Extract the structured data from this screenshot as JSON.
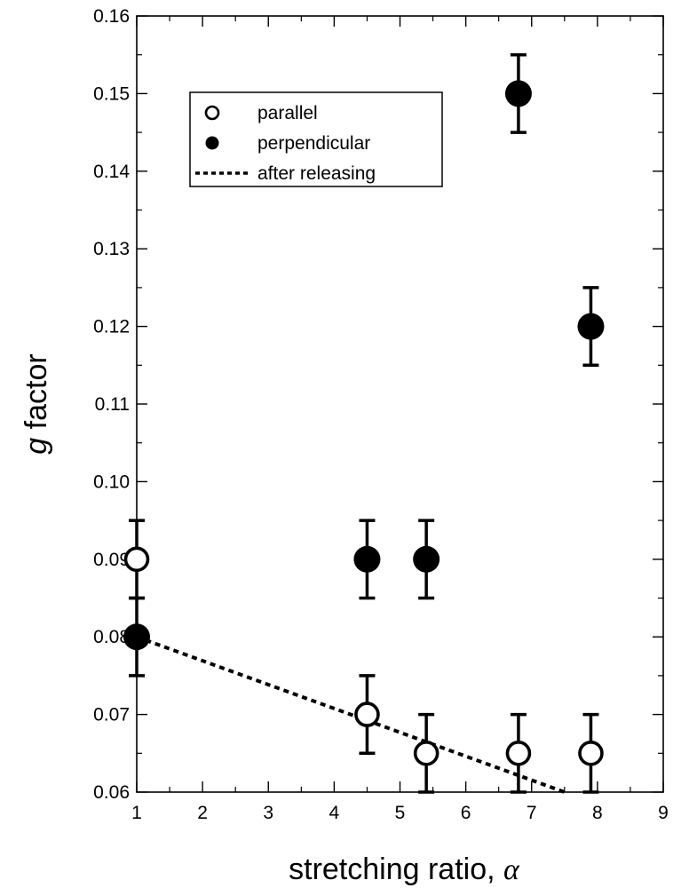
{
  "chart_data": {
    "type": "scatter",
    "xlabel": "stretching ratio, ",
    "xlabel_symbol": "α",
    "ylabel_italic": "g",
    "ylabel": " factor",
    "xlim": [
      1,
      9
    ],
    "ylim": [
      0.06,
      0.16
    ],
    "xticks": [
      {
        "value": 1,
        "label": "1"
      },
      {
        "value": 2,
        "label": "2"
      },
      {
        "value": 3,
        "label": "3"
      },
      {
        "value": 4,
        "label": "4"
      },
      {
        "value": 5,
        "label": "5"
      },
      {
        "value": 6,
        "label": "6"
      },
      {
        "value": 7,
        "label": "7"
      },
      {
        "value": 8,
        "label": "8"
      },
      {
        "value": 9,
        "label": "9"
      }
    ],
    "yticks": [
      {
        "value": 0.06,
        "label": "0.06"
      },
      {
        "value": 0.07,
        "label": "0.07"
      },
      {
        "value": 0.08,
        "label": "0.08"
      },
      {
        "value": 0.09,
        "label": "0.09"
      },
      {
        "value": 0.1,
        "label": "0.10"
      },
      {
        "value": 0.11,
        "label": "0.11"
      },
      {
        "value": 0.12,
        "label": "0.12"
      },
      {
        "value": 0.13,
        "label": "0.13"
      },
      {
        "value": 0.14,
        "label": "0.14"
      },
      {
        "value": 0.15,
        "label": "0.15"
      },
      {
        "value": 0.16,
        "label": "0.16"
      }
    ],
    "grid": false,
    "legend_position": "top-left",
    "series": [
      {
        "name": "parallel",
        "marker": "open-circle",
        "x": [
          1,
          4.5,
          5.4,
          6.8,
          7.9
        ],
        "y": [
          0.09,
          0.07,
          0.065,
          0.065,
          0.065
        ],
        "error": [
          0.005,
          0.005,
          0.005,
          0.005,
          0.005
        ]
      },
      {
        "name": "perpendicular",
        "marker": "filled-circle",
        "x": [
          1,
          4.5,
          5.4,
          6.8,
          7.9
        ],
        "y": [
          0.08,
          0.09,
          0.09,
          0.15,
          0.12
        ],
        "error": [
          0.005,
          0.005,
          0.005,
          0.005,
          0.005
        ]
      },
      {
        "name": "after releasing",
        "marker": "dotted-line",
        "x": [
          1,
          7.5
        ],
        "y": [
          0.08,
          0.06
        ]
      }
    ]
  }
}
